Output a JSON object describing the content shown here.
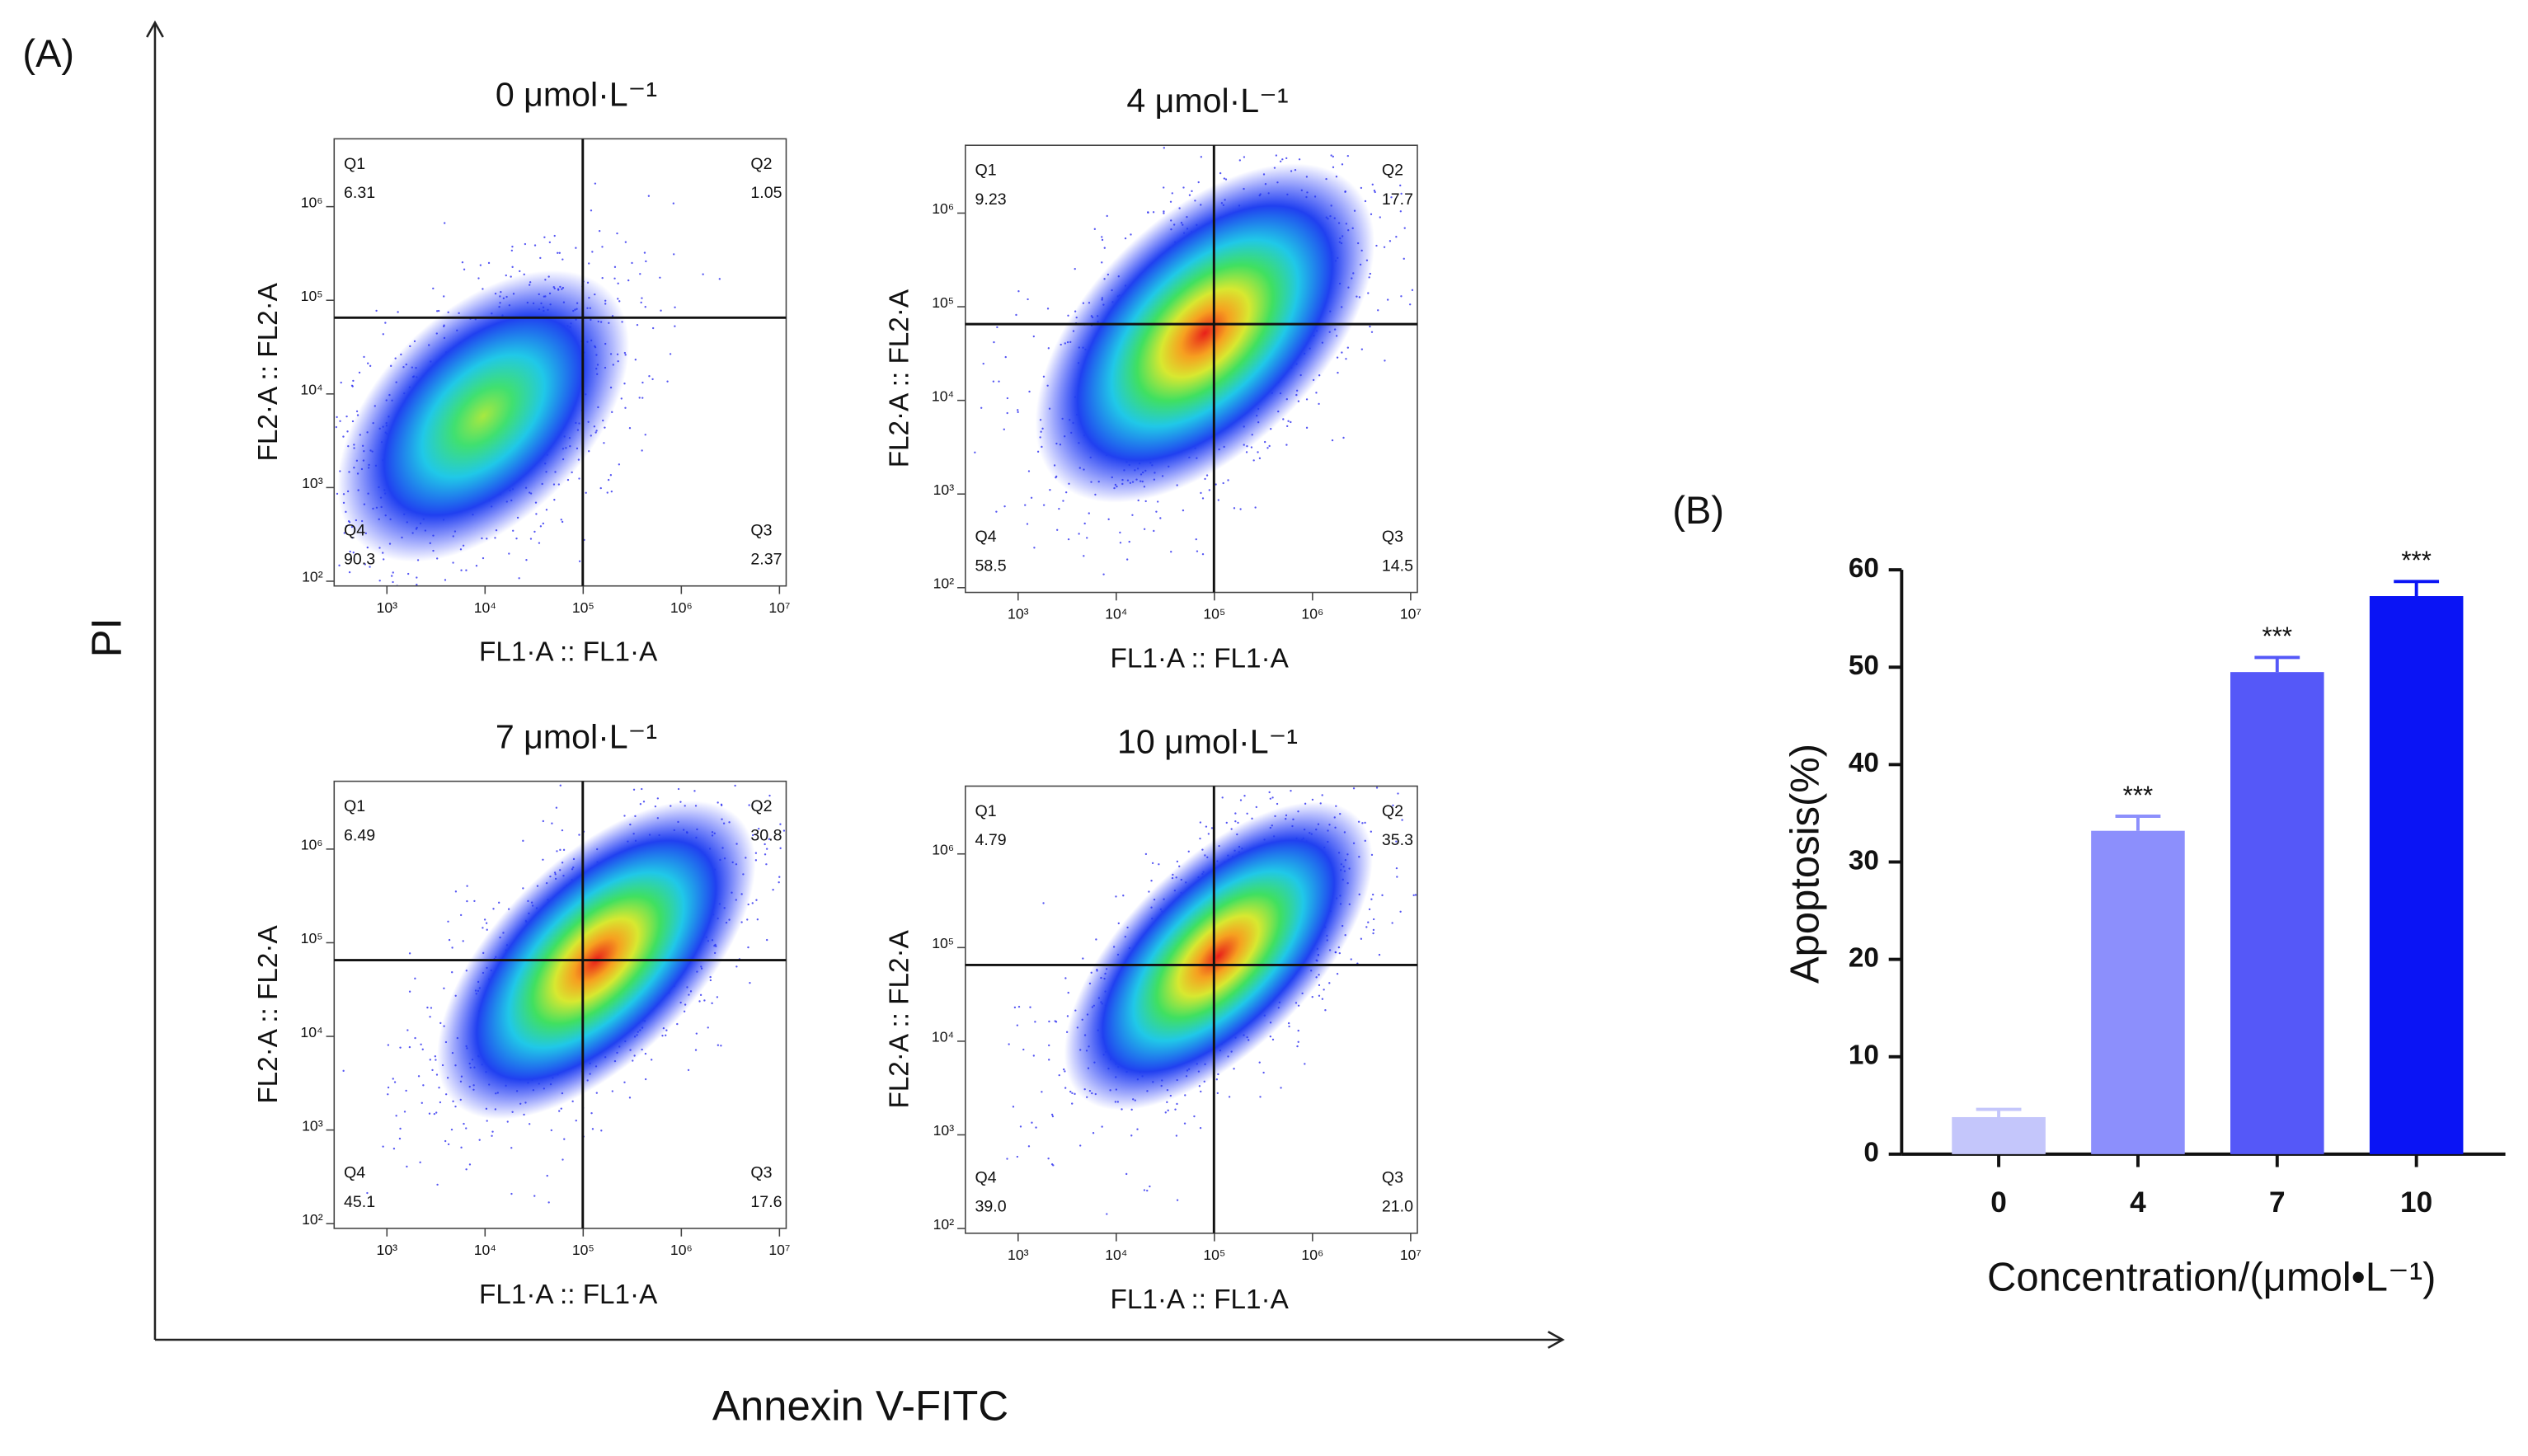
{
  "panel_a": {
    "label": "(A)",
    "ylabel": "PI",
    "xlabel": "Annexin V-FITC"
  },
  "panel_b_label": "(B)",
  "chart_data": [
    {
      "type": "flow",
      "title": "0 μmol·L⁻¹",
      "xlabel": "FL1·A :: FL1·A",
      "ylabel": "FL2·A :: FL2·A",
      "log_scale": true,
      "quadrants": [
        "Q1",
        "Q2",
        "Q3",
        "Q4"
      ],
      "values": [
        6.31,
        1.05,
        2.37,
        90.3
      ],
      "xlim": [
        290,
        11700000
      ],
      "ylim": [
        89,
        5300000
      ],
      "xticks": [
        {
          "value": 1000,
          "label": "10³"
        },
        {
          "value": 10000,
          "label": "10⁴"
        },
        {
          "value": 100000,
          "label": "10⁵"
        },
        {
          "value": 1000000,
          "label": "10⁶"
        },
        {
          "value": 10000000,
          "label": "10⁷"
        }
      ],
      "yticks": [
        {
          "value": 100,
          "label": "10²"
        },
        {
          "value": 1000,
          "label": "10³"
        },
        {
          "value": 10000,
          "label": "10⁴"
        },
        {
          "value": 100000,
          "label": "10⁵"
        },
        {
          "value": 1000000,
          "label": "10⁶"
        }
      ]
    },
    {
      "type": "flow",
      "title": "4 μmol·L⁻¹",
      "xlabel": "FL1·A :: FL1·A",
      "ylabel": "FL2·A :: FL2·A",
      "log_scale": true,
      "quadrants": [
        "Q1",
        "Q2",
        "Q3",
        "Q4"
      ],
      "values": [
        9.23,
        17.7,
        14.5,
        58.5
      ],
      "xlim": [
        290,
        11700000
      ],
      "ylim": [
        89,
        5300000
      ],
      "xticks": [
        {
          "value": 1000,
          "label": "10³"
        },
        {
          "value": 10000,
          "label": "10⁴"
        },
        {
          "value": 100000,
          "label": "10⁵"
        },
        {
          "value": 1000000,
          "label": "10⁶"
        },
        {
          "value": 10000000,
          "label": "10⁷"
        }
      ],
      "yticks": [
        {
          "value": 100,
          "label": "10²"
        },
        {
          "value": 1000,
          "label": "10³"
        },
        {
          "value": 10000,
          "label": "10⁴"
        },
        {
          "value": 100000,
          "label": "10⁵"
        },
        {
          "value": 1000000,
          "label": "10⁶"
        }
      ]
    },
    {
      "type": "flow",
      "title": "7 μmol·L⁻¹",
      "xlabel": "FL1·A :: FL1·A",
      "ylabel": "FL2·A :: FL2·A",
      "log_scale": true,
      "quadrants": [
        "Q1",
        "Q2",
        "Q3",
        "Q4"
      ],
      "values": [
        6.49,
        30.8,
        17.6,
        45.1
      ],
      "xlim": [
        290,
        11700000
      ],
      "ylim": [
        89,
        5300000
      ],
      "xticks": [
        {
          "value": 1000,
          "label": "10³"
        },
        {
          "value": 10000,
          "label": "10⁴"
        },
        {
          "value": 100000,
          "label": "10⁵"
        },
        {
          "value": 1000000,
          "label": "10⁶"
        },
        {
          "value": 10000000,
          "label": "10⁷"
        }
      ],
      "yticks": [
        {
          "value": 100,
          "label": "10²"
        },
        {
          "value": 1000,
          "label": "10³"
        },
        {
          "value": 10000,
          "label": "10⁴"
        },
        {
          "value": 100000,
          "label": "10⁵"
        },
        {
          "value": 1000000,
          "label": "10⁶"
        }
      ]
    },
    {
      "type": "flow",
      "title": "10 μmol·L⁻¹",
      "xlabel": "FL1·A :: FL1·A",
      "ylabel": "FL2·A :: FL2·A",
      "log_scale": true,
      "quadrants": [
        "Q1",
        "Q2",
        "Q3",
        "Q4"
      ],
      "values": [
        4.79,
        35.3,
        21,
        39
      ],
      "value_labels": [
        "4.79",
        "35.3",
        "21.0",
        "39.0"
      ],
      "xlim": [
        290,
        11700000
      ],
      "ylim": [
        89,
        5300000
      ],
      "xticks": [
        {
          "value": 1000,
          "label": "10³"
        },
        {
          "value": 10000,
          "label": "10⁴"
        },
        {
          "value": 100000,
          "label": "10⁵"
        },
        {
          "value": 1000000,
          "label": "10⁶"
        },
        {
          "value": 10000000,
          "label": "10⁷"
        }
      ],
      "yticks": [
        {
          "value": 100,
          "label": "10²"
        },
        {
          "value": 1000,
          "label": "10³"
        },
        {
          "value": 10000,
          "label": "10⁴"
        },
        {
          "value": 100000,
          "label": "10⁵"
        },
        {
          "value": 1000000,
          "label": "10⁶"
        }
      ]
    },
    {
      "type": "bar",
      "xlabel": "Concentration/(μmol•L⁻¹)",
      "ylabel": "Apoptosis(%)",
      "categories": [
        "0",
        "4",
        "7",
        "10"
      ],
      "values": [
        3.8,
        33.2,
        49.5,
        57.3
      ],
      "errors": [
        0.8,
        1.5,
        1.5,
        1.5
      ],
      "colors": [
        "#c4c6fb",
        "#8c8ffc",
        "#5558f8",
        "#0a14f5"
      ],
      "annotations": [
        null,
        "***",
        "***",
        "***"
      ],
      "ylim": [
        0,
        60
      ],
      "yticks": [
        0,
        10,
        20,
        30,
        40,
        50,
        60
      ]
    }
  ]
}
